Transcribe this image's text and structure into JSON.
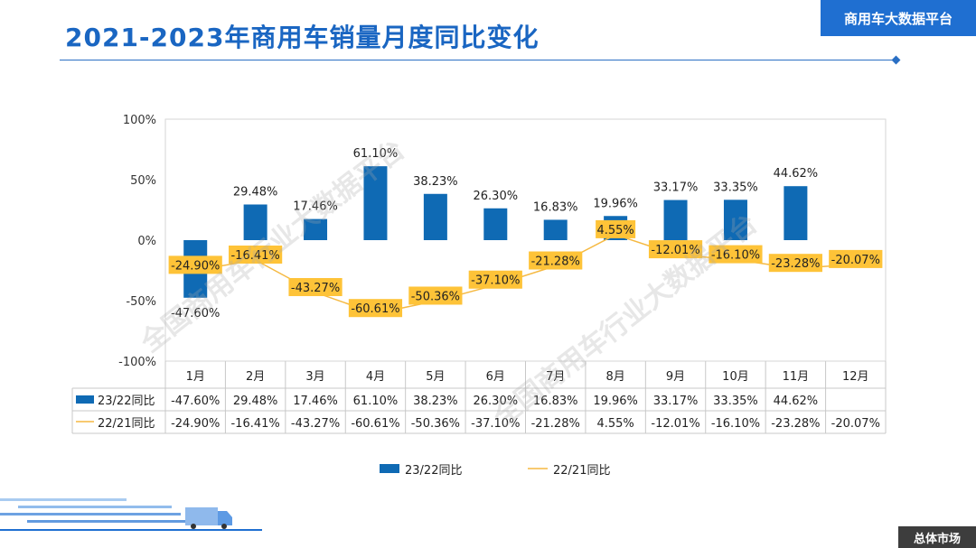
{
  "header": {
    "title": "2021-2023年商用车销量月度同比变化",
    "brand": "商用车大数据平台",
    "footer_tag": "总体市场"
  },
  "watermark": "全国商用车行业大数据平台",
  "colors": {
    "bar": "#0f6ab4",
    "line": "#f5b942",
    "label_box": "#fec338",
    "title": "#1a66c2"
  },
  "chart_data": {
    "type": "bar",
    "title": "2021-2023年商用车销量月度同比变化",
    "categories": [
      "1月",
      "2月",
      "3月",
      "4月",
      "5月",
      "6月",
      "7月",
      "8月",
      "9月",
      "10月",
      "11月",
      "12月"
    ],
    "yticks": [
      "100%",
      "50%",
      "0%",
      "-50%",
      "-100%"
    ],
    "ylim": [
      -100,
      100
    ],
    "series": [
      {
        "name": "23/22同比",
        "type": "bar",
        "values": [
          -47.6,
          29.48,
          17.46,
          61.1,
          38.23,
          26.3,
          16.83,
          19.96,
          33.17,
          33.35,
          44.62,
          null
        ],
        "labels": [
          "-47.60%",
          "29.48%",
          "17.46%",
          "61.10%",
          "38.23%",
          "26.30%",
          "16.83%",
          "19.96%",
          "33.17%",
          "33.35%",
          "44.62%",
          ""
        ]
      },
      {
        "name": "22/21同比",
        "type": "line",
        "values": [
          -24.9,
          -16.41,
          -43.27,
          -60.61,
          -50.36,
          -37.1,
          -21.28,
          4.55,
          -12.01,
          -16.1,
          -23.28,
          -20.07
        ],
        "labels": [
          "-24.90%",
          "-16.41%",
          "-43.27%",
          "-60.61%",
          "-50.36%",
          "-37.10%",
          "-21.28%",
          "4.55%",
          "-12.01%",
          "-16.10%",
          "-23.28%",
          "-20.07%"
        ]
      }
    ],
    "legend": "bottom"
  }
}
